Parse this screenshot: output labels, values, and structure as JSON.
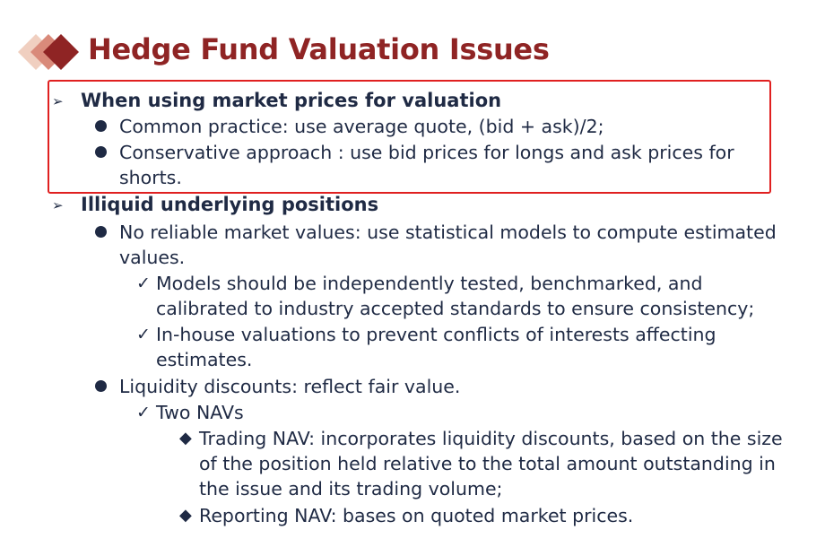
{
  "title": "Hedge Fund Valuation Issues",
  "colors": {
    "title": "#8f2424",
    "text": "#1f2a44",
    "highlight_border": "#e02020",
    "diamond_dark": "#8f2424",
    "diamond_mid": "#d98a7a",
    "diamond_light": "#f0cfc0"
  },
  "sections": [
    {
      "heading": "When using market prices for valuation",
      "bullets": [
        {
          "lines": [
            "Common practice: use average quote, (bid + ask)/2;"
          ]
        },
        {
          "lines": [
            "Conservative approach : use bid prices for longs and ask prices for",
            "shorts."
          ]
        }
      ]
    },
    {
      "heading": "Illiquid underlying positions",
      "bullets": [
        {
          "lines": [
            "No reliable market values: use statistical models to compute estimated",
            "values."
          ],
          "checks": [
            {
              "lines": [
                "Models should be independently tested, benchmarked, and",
                "calibrated to industry accepted standards to ensure consistency;"
              ]
            },
            {
              "lines": [
                "In-house valuations to prevent conflicts of interests affecting",
                "estimates."
              ]
            }
          ]
        },
        {
          "lines": [
            "Liquidity discounts: reflect fair value."
          ],
          "checks": [
            {
              "lines": [
                "Two NAVs"
              ],
              "items": [
                {
                  "lines": [
                    "Trading NAV: incorporates liquidity discounts, based on the size",
                    "of the position held relative to the total amount outstanding in",
                    "the issue and its trading volume;"
                  ]
                },
                {
                  "lines": [
                    "Reporting NAV: bases on quoted market prices."
                  ]
                }
              ]
            }
          ]
        }
      ]
    }
  ],
  "icons": {
    "section_marker": "arrowhead-bullet-icon",
    "bullet_marker": "filled-circle-bullet-icon",
    "check_marker": "checkmark-bullet-icon",
    "item_marker": "diamond-bullet-icon",
    "title_decoration": "stacked-diamonds-icon"
  },
  "glyphs": {
    "arrow": "➢",
    "check": "✓",
    "diamond": "◆"
  }
}
